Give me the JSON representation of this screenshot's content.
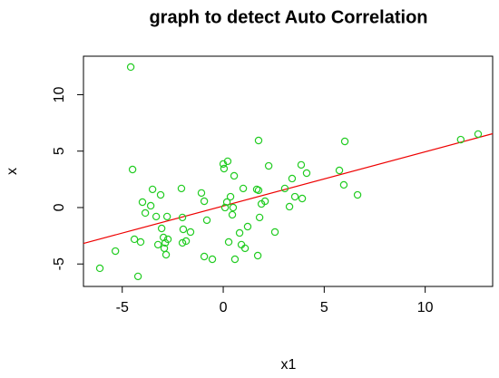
{
  "chart_data": {
    "type": "scatter",
    "title": "graph to detect Auto Correlation",
    "x_label": "x1",
    "y_label": "x",
    "series": [
      {
        "color": "#22cc22",
        "x": [
          -4.58,
          -6.11,
          -5.34,
          -4.22,
          -4.4,
          -4.09,
          -4.49,
          -4.0,
          -3.86,
          -3.5,
          -3.59,
          -3.32,
          -3.1,
          -3.23,
          -3.05,
          -2.96,
          -2.87,
          -2.83,
          -2.78,
          -2.92,
          -2.74,
          -2.07,
          -2.02,
          -1.98,
          -2.02,
          -1.84,
          -1.62,
          -1.08,
          -0.94,
          -0.81,
          -0.94,
          -0.54,
          0.0,
          0.04,
          0.22,
          0.18,
          0.09,
          0.27,
          0.36,
          0.49,
          0.45,
          0.54,
          0.58,
          0.81,
          0.9,
          1.08,
          0.99,
          1.21,
          1.66,
          1.71,
          1.8,
          1.75,
          1.75,
          1.89,
          2.07,
          2.25,
          2.56,
          3.05,
          3.28,
          3.41,
          3.55,
          3.86,
          3.91,
          4.13,
          5.75,
          5.97,
          6.02,
          6.65,
          11.76,
          12.62
        ],
        "values": [
          12.45,
          -5.38,
          -3.86,
          -6.1,
          -2.81,
          -3.05,
          3.37,
          0.48,
          -0.48,
          1.61,
          0.16,
          -0.8,
          1.12,
          -3.29,
          -1.85,
          -2.65,
          -3.13,
          -4.18,
          -0.8,
          -3.61,
          -2.81,
          1.69,
          -0.88,
          -1.93,
          -3.13,
          -2.97,
          -2.17,
          1.29,
          0.56,
          -1.12,
          -4.34,
          -4.58,
          3.86,
          3.45,
          4.1,
          0.48,
          0.0,
          -3.05,
          0.96,
          0.0,
          -0.64,
          2.81,
          -4.58,
          -2.25,
          -3.29,
          -3.61,
          1.69,
          -1.69,
          1.61,
          -4.26,
          -0.88,
          1.53,
          5.94,
          0.32,
          0.56,
          3.69,
          -2.17,
          1.69,
          0.08,
          2.57,
          0.96,
          3.78,
          0.8,
          3.05,
          3.29,
          2.01,
          5.86,
          1.12,
          6.02,
          6.51
        ]
      }
    ],
    "fit_line": {
      "intercept": 0.14,
      "slope": 0.48,
      "color": "#ee0000"
    },
    "xlim": [
      -6.92,
      13.34
    ],
    "ylim": [
      -6.99,
      13.41
    ],
    "xticks": [
      -5,
      0,
      5,
      10
    ],
    "yticks": [
      -5,
      0,
      5,
      10
    ]
  }
}
